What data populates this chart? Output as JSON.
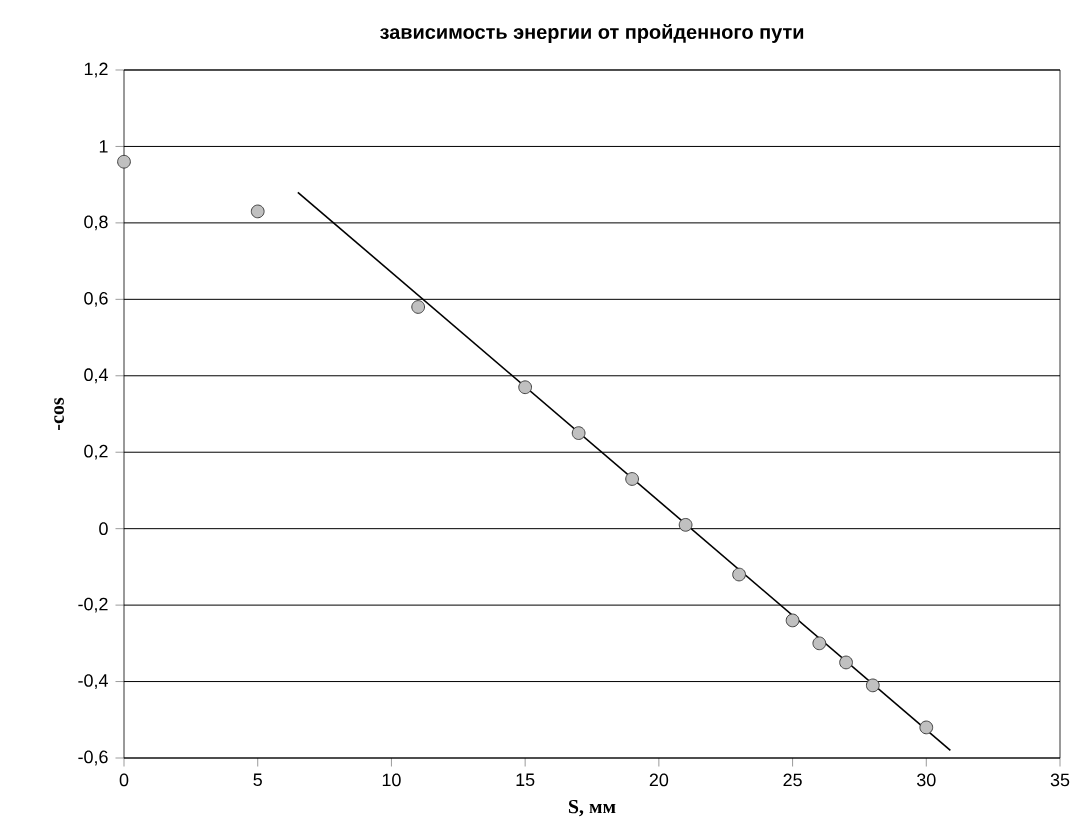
{
  "chart_data": {
    "type": "scatter",
    "title": "зависимость энергии от пройденного пути",
    "xlabel": "S, мм",
    "ylabel": "-cos",
    "series": [
      {
        "color": "#c0c0c0",
        "marker": "circle",
        "x": [
          0,
          5,
          11,
          15,
          17,
          19,
          21,
          23,
          25,
          26,
          27,
          28,
          30
        ],
        "values": [
          0.96,
          0.83,
          0.58,
          0.37,
          0.25,
          0.13,
          0.01,
          -0.12,
          -0.24,
          -0.3,
          -0.35,
          -0.41,
          -0.52
        ]
      },
      {
        "type": "line",
        "color": "#000000",
        "marker": "none",
        "x": [
          6.5,
          30.9
        ],
        "values": [
          0.88,
          -0.58
        ]
      }
    ],
    "xlim": [
      0,
      35
    ],
    "xticks": [
      0,
      5,
      10,
      15,
      20,
      25,
      30,
      35
    ],
    "ylim": [
      -0.6,
      1.2
    ],
    "yticks": [
      {
        "value": -0.6,
        "label": "-0,6"
      },
      {
        "value": -0.4,
        "label": "-0,4"
      },
      {
        "value": -0.2,
        "label": "-0,2"
      },
      0,
      {
        "value": 0.2,
        "label": "0,2"
      },
      {
        "value": 0.4,
        "label": "0,4"
      },
      {
        "value": 0.6,
        "label": "0,6"
      },
      {
        "value": 0.8,
        "label": "0,8"
      },
      1,
      {
        "value": 1.2,
        "label": "1,2"
      }
    ],
    "grid": "y"
  }
}
